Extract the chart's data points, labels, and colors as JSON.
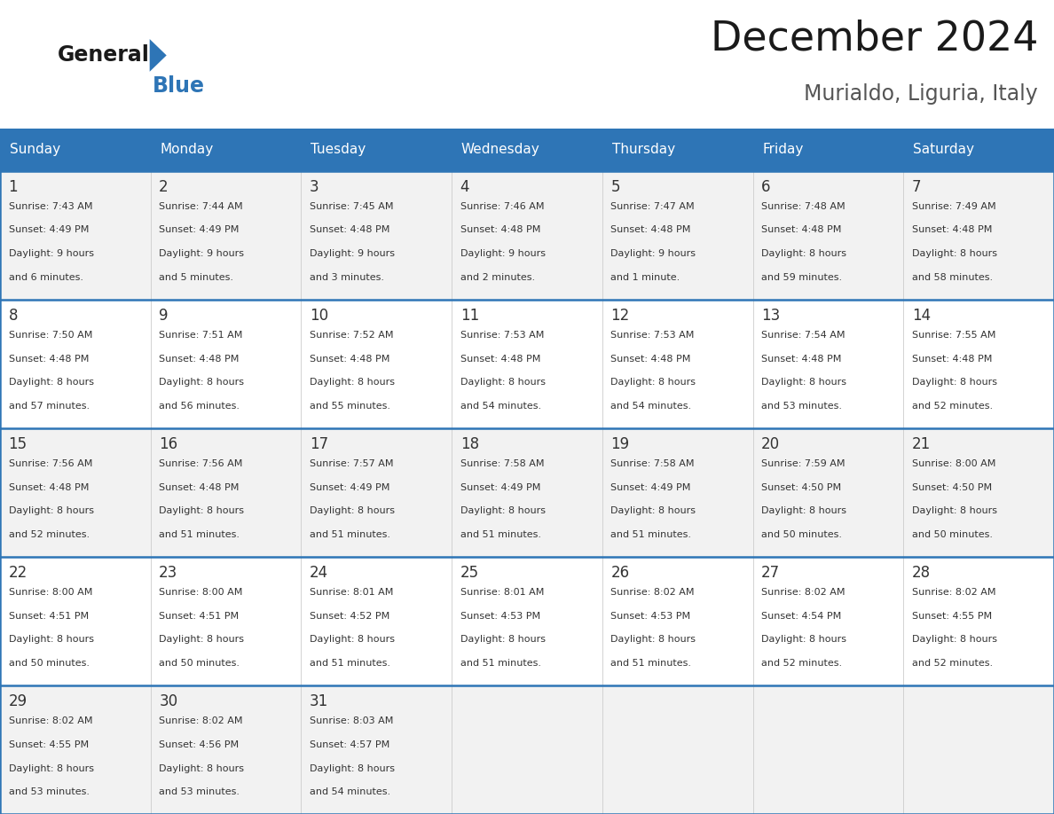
{
  "title": "December 2024",
  "subtitle": "Murialdo, Liguria, Italy",
  "header_bg": "#2E75B6",
  "header_text_color": "#FFFFFF",
  "day_names": [
    "Sunday",
    "Monday",
    "Tuesday",
    "Wednesday",
    "Thursday",
    "Friday",
    "Saturday"
  ],
  "cell_bg_light": "#F2F2F2",
  "cell_bg_white": "#FFFFFF",
  "cell_text_color": "#333333",
  "border_color": "#2E75B6",
  "title_color": "#1a1a1a",
  "subtitle_color": "#555555",
  "days": [
    {
      "date": 1,
      "col": 0,
      "row": 0,
      "sunrise": "7:43 AM",
      "sunset": "4:49 PM",
      "daylight": "9 hours and 6 minutes."
    },
    {
      "date": 2,
      "col": 1,
      "row": 0,
      "sunrise": "7:44 AM",
      "sunset": "4:49 PM",
      "daylight": "9 hours and 5 minutes."
    },
    {
      "date": 3,
      "col": 2,
      "row": 0,
      "sunrise": "7:45 AM",
      "sunset": "4:48 PM",
      "daylight": "9 hours and 3 minutes."
    },
    {
      "date": 4,
      "col": 3,
      "row": 0,
      "sunrise": "7:46 AM",
      "sunset": "4:48 PM",
      "daylight": "9 hours and 2 minutes."
    },
    {
      "date": 5,
      "col": 4,
      "row": 0,
      "sunrise": "7:47 AM",
      "sunset": "4:48 PM",
      "daylight": "9 hours and 1 minute."
    },
    {
      "date": 6,
      "col": 5,
      "row": 0,
      "sunrise": "7:48 AM",
      "sunset": "4:48 PM",
      "daylight": "8 hours and 59 minutes."
    },
    {
      "date": 7,
      "col": 6,
      "row": 0,
      "sunrise": "7:49 AM",
      "sunset": "4:48 PM",
      "daylight": "8 hours and 58 minutes."
    },
    {
      "date": 8,
      "col": 0,
      "row": 1,
      "sunrise": "7:50 AM",
      "sunset": "4:48 PM",
      "daylight": "8 hours and 57 minutes."
    },
    {
      "date": 9,
      "col": 1,
      "row": 1,
      "sunrise": "7:51 AM",
      "sunset": "4:48 PM",
      "daylight": "8 hours and 56 minutes."
    },
    {
      "date": 10,
      "col": 2,
      "row": 1,
      "sunrise": "7:52 AM",
      "sunset": "4:48 PM",
      "daylight": "8 hours and 55 minutes."
    },
    {
      "date": 11,
      "col": 3,
      "row": 1,
      "sunrise": "7:53 AM",
      "sunset": "4:48 PM",
      "daylight": "8 hours and 54 minutes."
    },
    {
      "date": 12,
      "col": 4,
      "row": 1,
      "sunrise": "7:53 AM",
      "sunset": "4:48 PM",
      "daylight": "8 hours and 54 minutes."
    },
    {
      "date": 13,
      "col": 5,
      "row": 1,
      "sunrise": "7:54 AM",
      "sunset": "4:48 PM",
      "daylight": "8 hours and 53 minutes."
    },
    {
      "date": 14,
      "col": 6,
      "row": 1,
      "sunrise": "7:55 AM",
      "sunset": "4:48 PM",
      "daylight": "8 hours and 52 minutes."
    },
    {
      "date": 15,
      "col": 0,
      "row": 2,
      "sunrise": "7:56 AM",
      "sunset": "4:48 PM",
      "daylight": "8 hours and 52 minutes."
    },
    {
      "date": 16,
      "col": 1,
      "row": 2,
      "sunrise": "7:56 AM",
      "sunset": "4:48 PM",
      "daylight": "8 hours and 51 minutes."
    },
    {
      "date": 17,
      "col": 2,
      "row": 2,
      "sunrise": "7:57 AM",
      "sunset": "4:49 PM",
      "daylight": "8 hours and 51 minutes."
    },
    {
      "date": 18,
      "col": 3,
      "row": 2,
      "sunrise": "7:58 AM",
      "sunset": "4:49 PM",
      "daylight": "8 hours and 51 minutes."
    },
    {
      "date": 19,
      "col": 4,
      "row": 2,
      "sunrise": "7:58 AM",
      "sunset": "4:49 PM",
      "daylight": "8 hours and 51 minutes."
    },
    {
      "date": 20,
      "col": 5,
      "row": 2,
      "sunrise": "7:59 AM",
      "sunset": "4:50 PM",
      "daylight": "8 hours and 50 minutes."
    },
    {
      "date": 21,
      "col": 6,
      "row": 2,
      "sunrise": "8:00 AM",
      "sunset": "4:50 PM",
      "daylight": "8 hours and 50 minutes."
    },
    {
      "date": 22,
      "col": 0,
      "row": 3,
      "sunrise": "8:00 AM",
      "sunset": "4:51 PM",
      "daylight": "8 hours and 50 minutes."
    },
    {
      "date": 23,
      "col": 1,
      "row": 3,
      "sunrise": "8:00 AM",
      "sunset": "4:51 PM",
      "daylight": "8 hours and 50 minutes."
    },
    {
      "date": 24,
      "col": 2,
      "row": 3,
      "sunrise": "8:01 AM",
      "sunset": "4:52 PM",
      "daylight": "8 hours and 51 minutes."
    },
    {
      "date": 25,
      "col": 3,
      "row": 3,
      "sunrise": "8:01 AM",
      "sunset": "4:53 PM",
      "daylight": "8 hours and 51 minutes."
    },
    {
      "date": 26,
      "col": 4,
      "row": 3,
      "sunrise": "8:02 AM",
      "sunset": "4:53 PM",
      "daylight": "8 hours and 51 minutes."
    },
    {
      "date": 27,
      "col": 5,
      "row": 3,
      "sunrise": "8:02 AM",
      "sunset": "4:54 PM",
      "daylight": "8 hours and 52 minutes."
    },
    {
      "date": 28,
      "col": 6,
      "row": 3,
      "sunrise": "8:02 AM",
      "sunset": "4:55 PM",
      "daylight": "8 hours and 52 minutes."
    },
    {
      "date": 29,
      "col": 0,
      "row": 4,
      "sunrise": "8:02 AM",
      "sunset": "4:55 PM",
      "daylight": "8 hours and 53 minutes."
    },
    {
      "date": 30,
      "col": 1,
      "row": 4,
      "sunrise": "8:02 AM",
      "sunset": "4:56 PM",
      "daylight": "8 hours and 53 minutes."
    },
    {
      "date": 31,
      "col": 2,
      "row": 4,
      "sunrise": "8:03 AM",
      "sunset": "4:57 PM",
      "daylight": "8 hours and 54 minutes."
    }
  ]
}
